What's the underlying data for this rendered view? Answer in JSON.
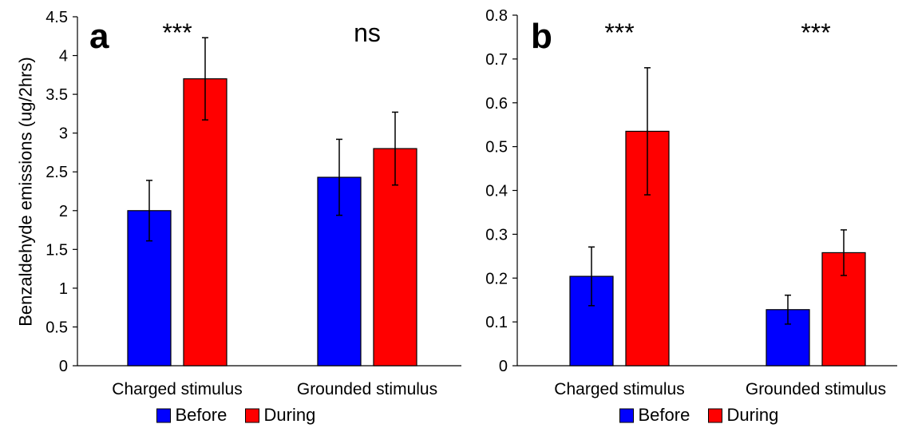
{
  "chart_data": [
    {
      "type": "bar",
      "panel_label": "a",
      "ylabel": "Benzaldehyde emissions (ug/2hrs)",
      "ylim": [
        0,
        4.5
      ],
      "yticks": [
        0,
        0.5,
        1,
        1.5,
        2,
        2.5,
        3,
        3.5,
        4,
        4.5
      ],
      "ytick_labels": [
        "0",
        "0.5",
        "1",
        "1.5",
        "2",
        "2.5",
        "3",
        "3.5",
        "4",
        "4.5"
      ],
      "categories": [
        "Charged stimulus",
        "Grounded stimulus"
      ],
      "series": [
        {
          "name": "Before",
          "color": "#0000ff",
          "values": [
            2.0,
            2.43
          ],
          "errors": [
            0.39,
            0.49
          ]
        },
        {
          "name": "During",
          "color": "#ff0000",
          "values": [
            3.7,
            2.8
          ],
          "errors": [
            0.53,
            0.47
          ]
        }
      ],
      "significance": [
        "***",
        "ns"
      ],
      "legend": "bottom-center",
      "grid": false
    },
    {
      "type": "bar",
      "panel_label": "b",
      "ylabel": "",
      "ylim": [
        0,
        0.8
      ],
      "yticks": [
        0,
        0.1,
        0.2,
        0.3,
        0.4,
        0.5,
        0.6,
        0.7,
        0.8
      ],
      "ytick_labels": [
        "0",
        "0.1",
        "0.2",
        "0.3",
        "0.4",
        "0.5",
        "0.6",
        "0.7",
        "0.8"
      ],
      "categories": [
        "Charged stimulus",
        "Grounded stimulus"
      ],
      "series": [
        {
          "name": "Before",
          "color": "#0000ff",
          "values": [
            0.204,
            0.128
          ],
          "errors": [
            0.067,
            0.033
          ]
        },
        {
          "name": "During",
          "color": "#ff0000",
          "values": [
            0.535,
            0.258
          ],
          "errors": [
            0.145,
            0.052
          ]
        }
      ],
      "significance": [
        "***",
        "***"
      ],
      "legend": "bottom-center",
      "grid": false
    }
  ]
}
